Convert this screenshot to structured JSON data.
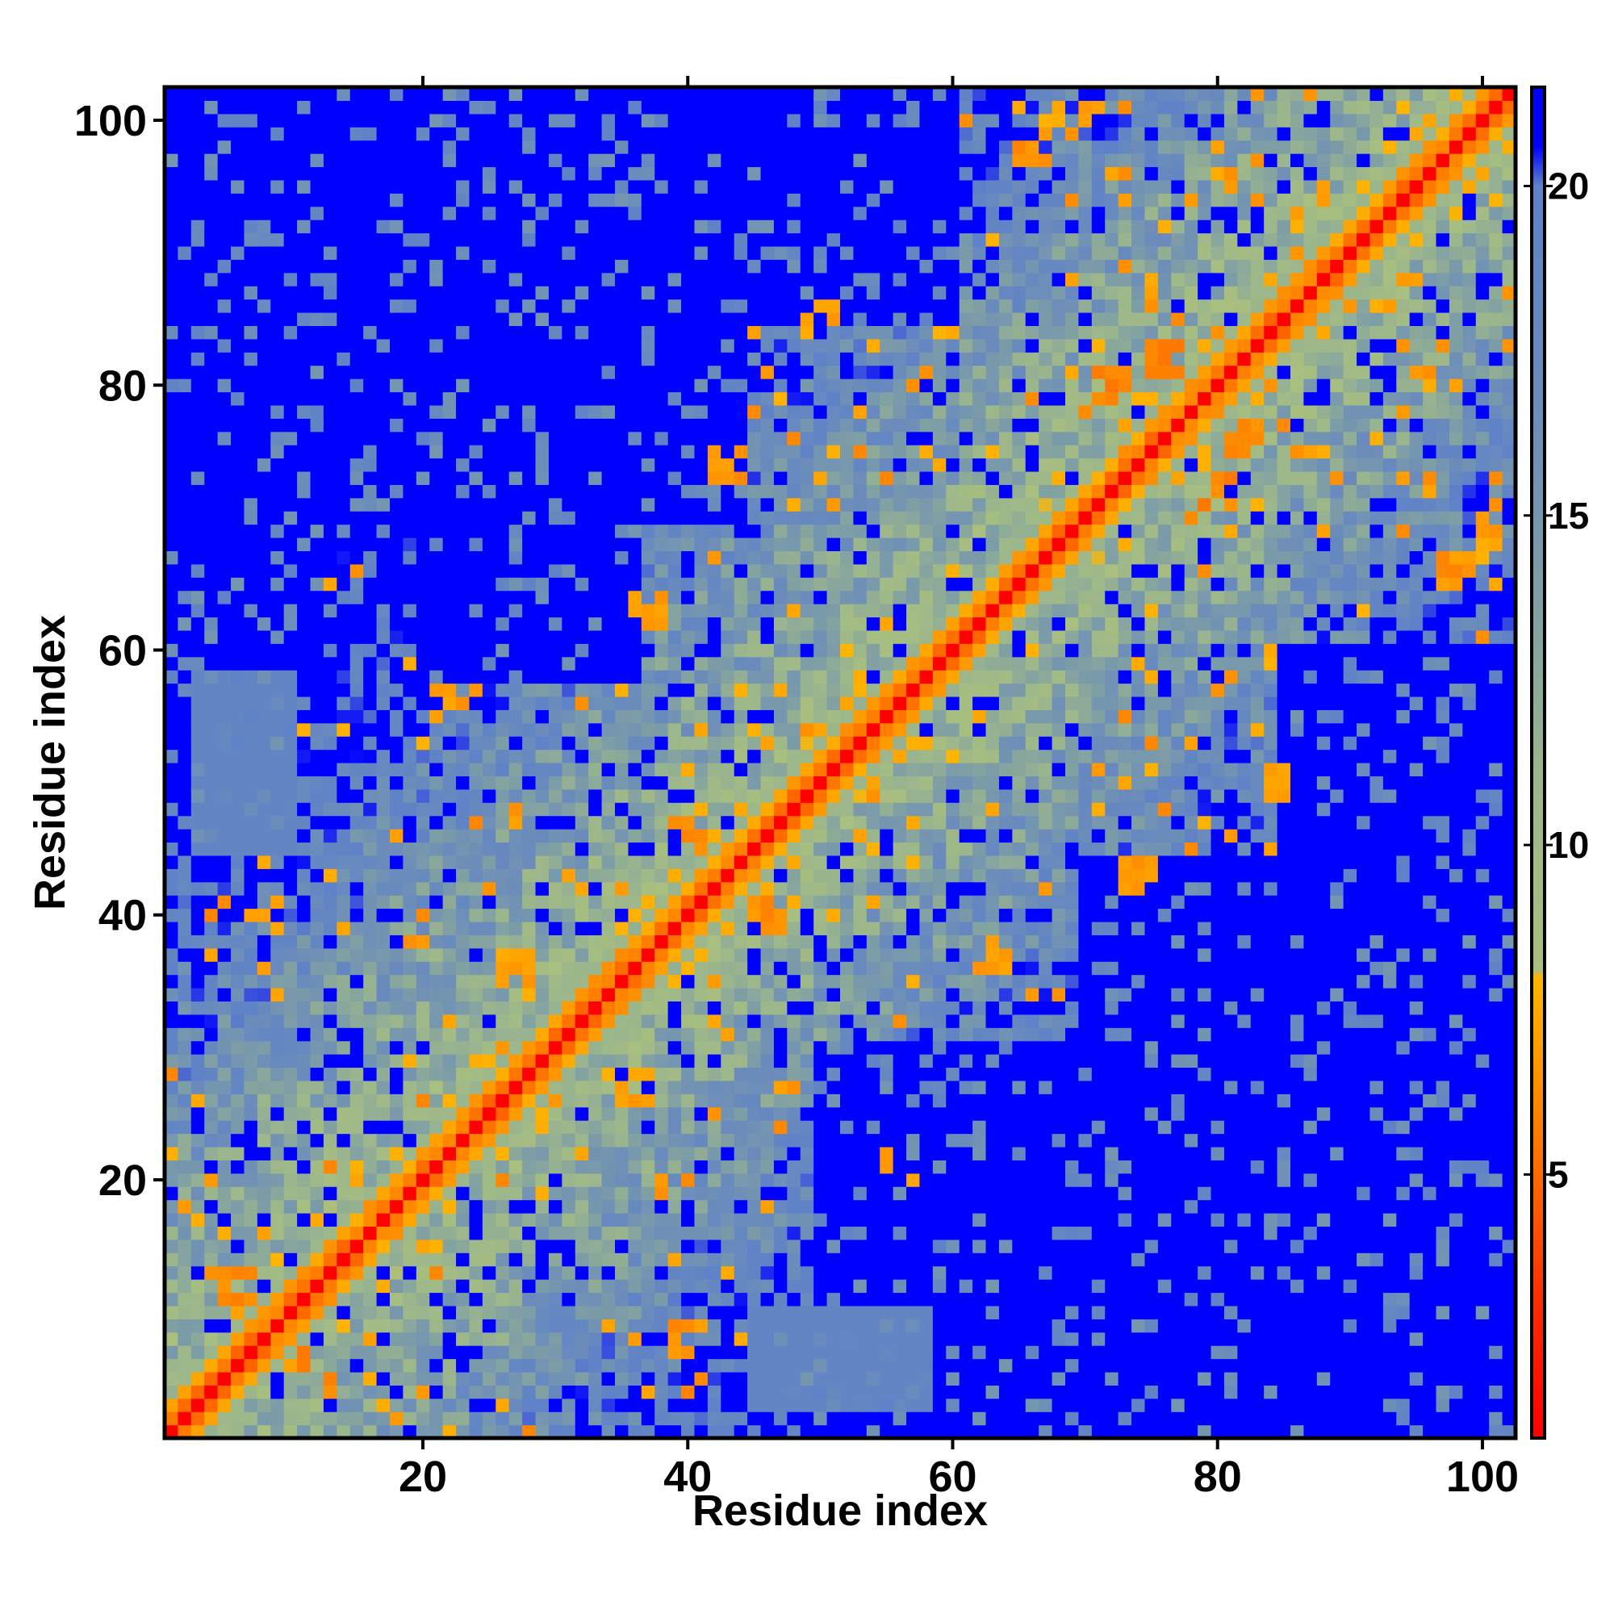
{
  "chart_data": {
    "type": "heatmap",
    "description_scope": "residue contact/distance map",
    "title": "",
    "xlabel": "Residue index",
    "ylabel": "Residue index",
    "n_residues": 102,
    "xlim": [
      1,
      102
    ],
    "ylim": [
      1,
      102
    ],
    "x_ticks": [
      20,
      40,
      60,
      80,
      100
    ],
    "y_ticks": [
      20,
      40,
      60,
      80,
      100
    ],
    "colorbar": {
      "range": [
        1,
        21.5
      ],
      "ticks": [
        5,
        10,
        15,
        20
      ],
      "placement": "right",
      "colors": [
        {
          "at": 1.0,
          "color": "#ff0000"
        },
        {
          "at": 3.0,
          "color": "#ff2a00"
        },
        {
          "at": 5.0,
          "color": "#ff6a00"
        },
        {
          "at": 7.0,
          "color": "#ffa000"
        },
        {
          "at": 8.0,
          "color": "#ffb400"
        },
        {
          "at": 8.1,
          "color": "#a9bf7f"
        },
        {
          "at": 11.0,
          "color": "#9cb68c"
        },
        {
          "at": 14.0,
          "color": "#7c9ca8"
        },
        {
          "at": 17.0,
          "color": "#6a8bbc"
        },
        {
          "at": 20.0,
          "color": "#5f82c8"
        },
        {
          "at": 20.6,
          "color": "#0000ff"
        },
        {
          "at": 21.5,
          "color": "#0000ff"
        }
      ]
    },
    "diagonal_value": 1.0,
    "helix_band_values": [
      1.0,
      5.5,
      7.0,
      11.0
    ],
    "far_value": 21.5,
    "regions": [
      {
        "x": [
          1,
          12
        ],
        "y": [
          60,
          102
        ],
        "value": 21.5
      },
      {
        "x": [
          12,
          44
        ],
        "y": [
          70,
          102
        ],
        "value": 21.5
      },
      {
        "x": [
          20,
          36
        ],
        "y": [
          58,
          102
        ],
        "value": 21.5
      },
      {
        "x": [
          60,
          102
        ],
        "y": [
          1,
          12
        ],
        "value": 21.5
      },
      {
        "x": [
          70,
          102
        ],
        "y": [
          12,
          44
        ],
        "value": 21.5
      },
      {
        "x": [
          50,
          70
        ],
        "y": [
          1,
          30
        ],
        "value": 21.5
      },
      {
        "x": [
          85,
          102
        ],
        "y": [
          36,
          60
        ],
        "value": 21.5
      },
      {
        "x": [
          36,
          60
        ],
        "y": [
          85,
          102
        ],
        "value": 21.5
      },
      {
        "x": [
          3,
          10
        ],
        "y": [
          45,
          58
        ],
        "value": 19.0
      },
      {
        "x": [
          45,
          58
        ],
        "y": [
          3,
          10
        ],
        "value": 19.0
      }
    ],
    "contacts": [
      {
        "x": 6,
        "y": 12,
        "value": 6.0
      },
      {
        "x": 12,
        "y": 6,
        "value": 6.0
      },
      {
        "x": 40,
        "y": 46,
        "value": 6.5
      },
      {
        "x": 46,
        "y": 40,
        "value": 6.5
      },
      {
        "x": 43,
        "y": 74,
        "value": 6.5
      },
      {
        "x": 74,
        "y": 43,
        "value": 6.5
      },
      {
        "x": 72,
        "y": 80,
        "value": 6.0
      },
      {
        "x": 80,
        "y": 72,
        "value": 6.0
      },
      {
        "x": 8,
        "y": 40,
        "value": 6.5
      },
      {
        "x": 40,
        "y": 8,
        "value": 6.5
      },
      {
        "x": 27,
        "y": 36,
        "value": 7.0
      },
      {
        "x": 36,
        "y": 27,
        "value": 7.0
      },
      {
        "x": 76,
        "y": 82,
        "value": 6.0
      },
      {
        "x": 82,
        "y": 76,
        "value": 6.0
      },
      {
        "x": 21,
        "y": 56,
        "value": 7.0
      },
      {
        "x": 56,
        "y": 21,
        "value": 7.0
      },
      {
        "x": 63,
        "y": 37,
        "value": 7.0
      },
      {
        "x": 37,
        "y": 63,
        "value": 7.0
      },
      {
        "x": 98,
        "y": 66,
        "value": 6.5
      },
      {
        "x": 66,
        "y": 98,
        "value": 6.5
      },
      {
        "x": 85,
        "y": 50,
        "value": 7.0
      },
      {
        "x": 50,
        "y": 85,
        "value": 7.0
      },
      {
        "x": 70,
        "y": 100,
        "value": 7.0
      },
      {
        "x": 100,
        "y": 70,
        "value": 7.0
      }
    ],
    "grid": false,
    "legend": "colorbar-right"
  }
}
